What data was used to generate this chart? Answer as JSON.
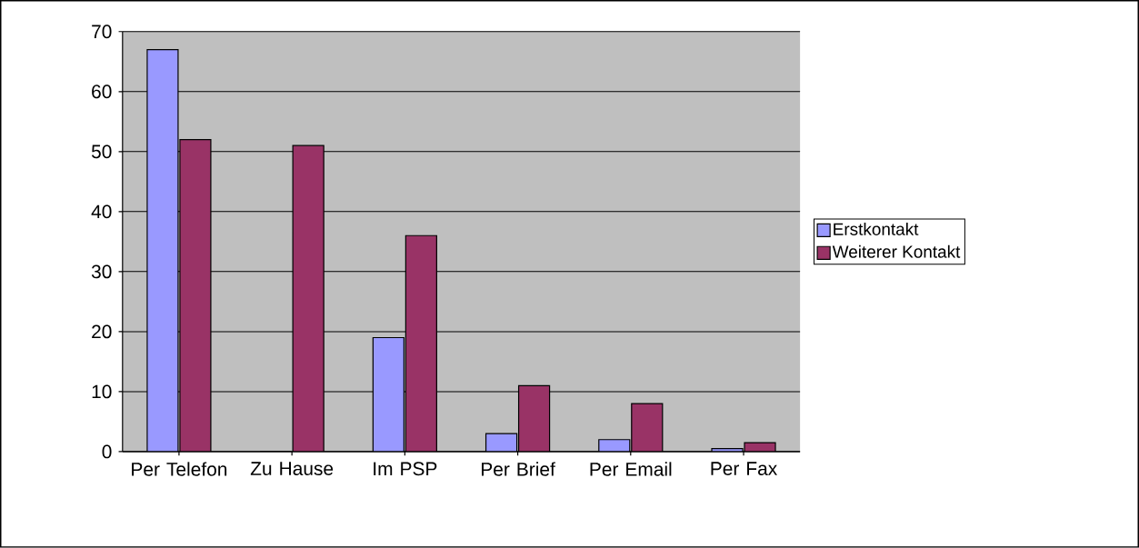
{
  "chart_data": {
    "type": "bar",
    "categories": [
      "Per Telefon",
      "Zu Hause",
      "Im PSP",
      "Per Brief",
      "Per Email",
      "Per Fax"
    ],
    "series": [
      {
        "name": "Erstkontakt",
        "color": "#9999ff",
        "values": [
          67,
          0,
          19,
          3,
          2,
          0.5
        ]
      },
      {
        "name": "Weiterer Kontakt",
        "color": "#993366",
        "values": [
          52,
          51,
          36,
          11,
          8,
          1.5
        ]
      }
    ],
    "ylim": [
      0,
      70
    ],
    "yticks": [
      0,
      10,
      20,
      30,
      40,
      50,
      60,
      70
    ],
    "grid": "y",
    "legend": "right"
  }
}
